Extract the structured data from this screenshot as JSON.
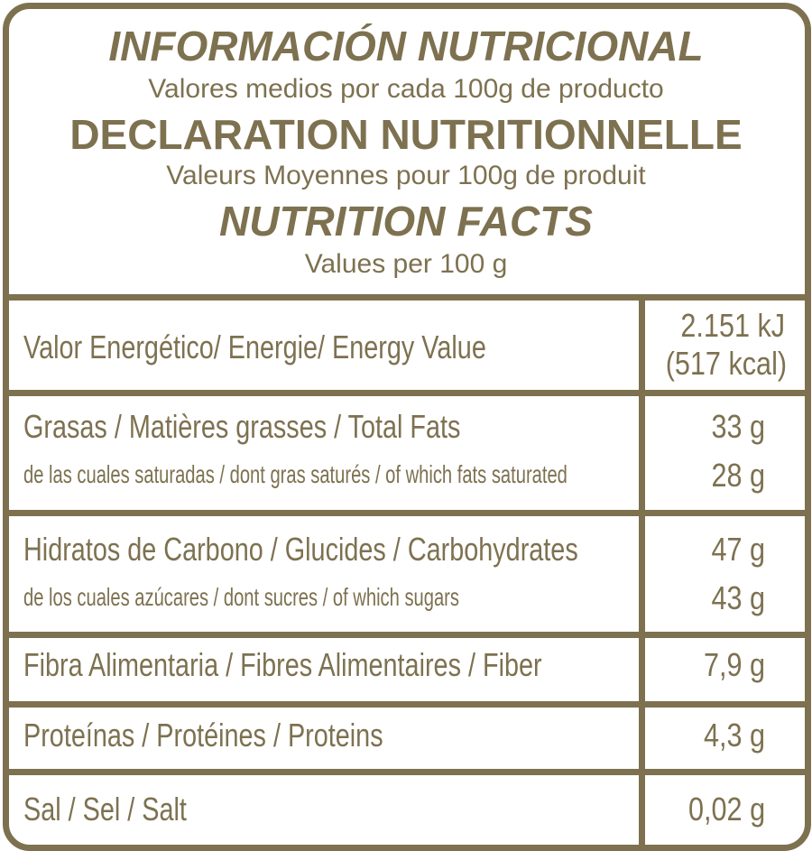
{
  "header": {
    "title_es": "INFORMACIÓN NUTRICIONAL",
    "subtitle_es": "Valores medios por cada 100g de producto",
    "title_fr": "DECLARATION NUTRITIONNELLE",
    "subtitle_fr": "Valeurs Moyennes pour 100g de produit",
    "title_en": "NUTRITION FACTS",
    "subtitle_en": "Values per 100 g"
  },
  "rows": {
    "energy": {
      "label": "Valor Energético/ Energie/ Energy Value",
      "value_kj": "2.151 kJ",
      "value_kcal": "(517 kcal)"
    },
    "fats": {
      "label": "Grasas / Matières grasses / Total Fats",
      "value": "33 g"
    },
    "saturated": {
      "label": "de las cuales saturadas / dont gras saturés / of which fats saturated",
      "value": "28 g"
    },
    "carbs": {
      "label": "Hidratos de Carbono / Glucides / Carbohydrates",
      "value": "47 g"
    },
    "sugars": {
      "label": "de los cuales azúcares / dont sucres / of which sugars",
      "value": "43 g"
    },
    "fiber": {
      "label": "Fibra Alimentaria / Fibres Alimentaires / Fiber",
      "value": "7,9 g"
    },
    "protein": {
      "label": "Proteínas / Protéines / Proteins",
      "value": "4,3 g"
    },
    "salt": {
      "label": "Sal / Sel / Salt",
      "value": "0,02 g"
    }
  },
  "colors": {
    "brand": "#7d7150",
    "background": "#ffffff"
  }
}
